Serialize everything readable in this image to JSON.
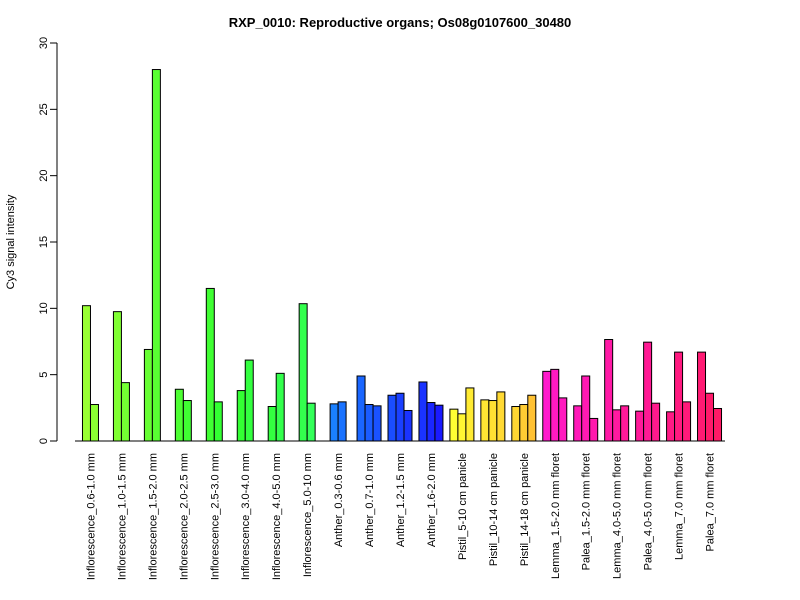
{
  "chart_data": {
    "type": "bar",
    "title": "RXP_0010: Reproductive organs; Os08g0107600_30480",
    "xlabel": "",
    "ylabel": "Cy3 signal intensity",
    "ylim": [
      0,
      30
    ],
    "yticks": [
      0,
      5,
      10,
      15,
      20,
      25,
      30
    ],
    "grid": false,
    "categories": [
      "Inflorescence_0.6-1.0 mm",
      "Inflorescence_1.0-1.5 mm",
      "Inflorescence_1.5-2.0 mm",
      "Inflorescence_2.0-2.5 mm",
      "Inflorescence_2.5-3.0 mm",
      "Inflorescence_3.0-4.0 mm",
      "Inflorescence_4.0-5.0 mm",
      "Inflorescence_5.0-10 mm",
      "Anther_0.3-0.6 mm",
      "Anther_0.7-1.0 mm",
      "Anther_1.2-1.5 mm",
      "Anther_1.6-2.0 mm",
      "Pistil_5-10 cm panicle",
      "Pistil_10-14 cm panicle",
      "Pistil_14-18 cm panicle",
      "Lemma_1.5-2.0 mm floret",
      "Palea_1.5-2.0 mm floret",
      "Lemma_4.0-5.0 mm floret",
      "Palea_4.0-5.0 mm floret",
      "Lemma_7.0 mm floret",
      "Palea_7.0 mm floret"
    ],
    "groups": [
      {
        "values": [
          10.2,
          2.75
        ],
        "colors": [
          "#99ff33",
          "#8cff33"
        ]
      },
      {
        "values": [
          9.75,
          4.4
        ],
        "colors": [
          "#80ff33",
          "#73ff33"
        ]
      },
      {
        "values": [
          6.9,
          28.0
        ],
        "colors": [
          "#66ff33",
          "#59ff33"
        ]
      },
      {
        "values": [
          3.9,
          3.05
        ],
        "colors": [
          "#4dff33",
          "#40ff33"
        ]
      },
      {
        "values": [
          11.5,
          2.95
        ],
        "colors": [
          "#40ff33",
          "#33ff33"
        ]
      },
      {
        "values": [
          3.8,
          6.1
        ],
        "colors": [
          "#33ff33",
          "#33ff40"
        ]
      },
      {
        "values": [
          2.6,
          5.1
        ],
        "colors": [
          "#33ff40",
          "#33ff4d"
        ]
      },
      {
        "values": [
          10.35,
          2.85
        ],
        "colors": [
          "#33ff4d",
          "#33ff59"
        ]
      },
      {
        "values": [
          2.8,
          2.95
        ],
        "colors": [
          "#1a80ff",
          "#1a73ff"
        ]
      },
      {
        "values": [
          4.9,
          2.75,
          2.65
        ],
        "colors": [
          "#1a66ff",
          "#1a5cff",
          "#1a52ff"
        ]
      },
      {
        "values": [
          3.45,
          3.6,
          2.3
        ],
        "colors": [
          "#1a4dff",
          "#1a40ff",
          "#1a33ff"
        ]
      },
      {
        "values": [
          4.45,
          2.9,
          2.7
        ],
        "colors": [
          "#1a33ff",
          "#1a26ff",
          "#1a1aff"
        ]
      },
      {
        "values": [
          2.4,
          2.05,
          4.0
        ],
        "colors": [
          "#ffff33",
          "#fff533",
          "#ffeb33"
        ]
      },
      {
        "values": [
          3.1,
          3.05,
          3.7
        ],
        "colors": [
          "#ffe633",
          "#ffe033",
          "#ffd933"
        ]
      },
      {
        "values": [
          2.6,
          2.75,
          3.45
        ],
        "colors": [
          "#ffd633",
          "#ffcc33",
          "#ffc233"
        ]
      },
      {
        "values": [
          5.25,
          5.4,
          3.25
        ],
        "colors": [
          "#ff1acc",
          "#ff1ac2",
          "#ff1abf"
        ]
      },
      {
        "values": [
          2.65,
          4.9,
          1.7
        ],
        "colors": [
          "#ff1ab8",
          "#ff1ab3",
          "#ff1aad"
        ]
      },
      {
        "values": [
          7.65,
          2.35,
          2.65
        ],
        "colors": [
          "#ff1aa6",
          "#ff1aa0",
          "#ff1a99"
        ]
      },
      {
        "values": [
          2.25,
          7.45,
          2.85
        ],
        "colors": [
          "#ff1a99",
          "#ff1a94",
          "#ff1a8c"
        ]
      },
      {
        "values": [
          2.2,
          6.7,
          2.95
        ],
        "colors": [
          "#ff1a85",
          "#ff1a80",
          "#ff1a7a"
        ]
      },
      {
        "values": [
          6.7,
          3.6,
          2.45
        ],
        "colors": [
          "#ff1a73",
          "#ff1a6b",
          "#ff1a66"
        ]
      }
    ]
  }
}
